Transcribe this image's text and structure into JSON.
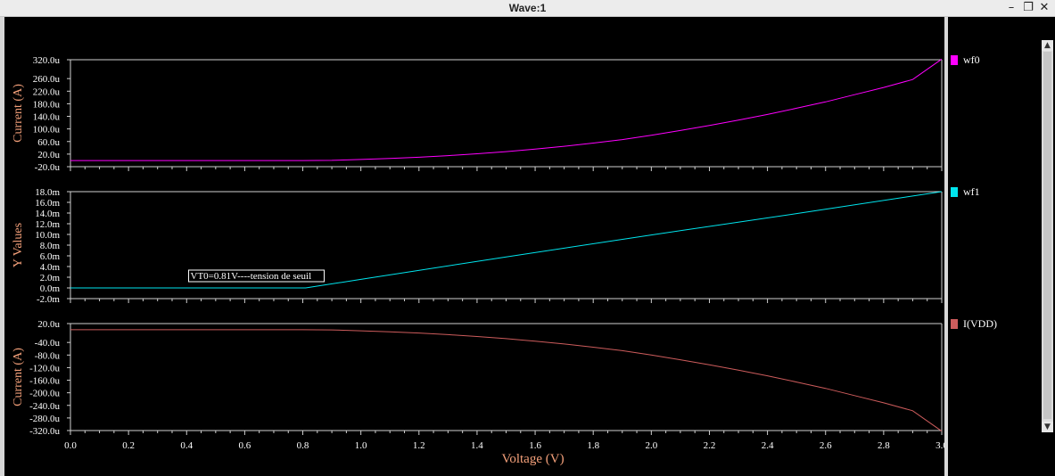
{
  "window": {
    "title": "Wave:1",
    "minimize_icon": "minimize-icon",
    "restore_icon": "restore-icon",
    "close_icon": "close-icon"
  },
  "legend": [
    {
      "label": "wf0",
      "color": "#ff00ff"
    },
    {
      "label": "wf1",
      "color": "#00e5ee"
    },
    {
      "label": "I(VDD)",
      "color": "#cd5c5c"
    }
  ],
  "chart_data": [
    {
      "type": "line",
      "ylabel": "Current (A)",
      "xlabel": "",
      "xlim": [
        0,
        3.0
      ],
      "ylim": [
        -20,
        320
      ],
      "y_ticks": [
        "320.0u",
        "260.0u",
        "220.0u",
        "180.0u",
        "140.0u",
        "100.0u",
        "60.0u",
        "20.0u",
        "-20.0u"
      ],
      "y_tick_values": [
        320,
        260,
        220,
        180,
        140,
        100,
        60,
        20,
        -20
      ],
      "color": "#ff00ff",
      "series": [
        {
          "name": "wf0",
          "x": [
            0,
            0.2,
            0.4,
            0.6,
            0.8,
            0.9,
            1.0,
            1.1,
            1.2,
            1.3,
            1.4,
            1.5,
            1.6,
            1.7,
            1.8,
            1.9,
            2.0,
            2.1,
            2.2,
            2.3,
            2.4,
            2.5,
            2.6,
            2.7,
            2.8,
            2.9,
            3.0
          ],
          "y": [
            -0.5,
            -0.5,
            -0.5,
            -0.5,
            -0.5,
            0,
            3,
            6,
            10,
            15,
            21,
            28,
            36,
            45,
            55,
            66,
            80,
            95,
            111,
            128,
            146,
            166,
            186,
            209,
            232,
            257,
            322
          ]
        }
      ],
      "annotations": []
    },
    {
      "type": "line",
      "ylabel": "Y Values",
      "xlabel": "",
      "xlim": [
        0,
        3.0
      ],
      "ylim": [
        -2,
        18
      ],
      "y_ticks": [
        "18.0m",
        "16.0m",
        "14.0m",
        "12.0m",
        "10.0m",
        "8.0m",
        "6.0m",
        "4.0m",
        "2.0m",
        "0.0m",
        "-2.0m"
      ],
      "y_tick_values": [
        18,
        16,
        14,
        12,
        10,
        8,
        6,
        4,
        2,
        0,
        -2
      ],
      "color": "#00e5ee",
      "series": [
        {
          "name": "wf1",
          "x": [
            0,
            0.2,
            0.4,
            0.6,
            0.81,
            1.0,
            1.5,
            2.0,
            2.5,
            3.0
          ],
          "y": [
            0,
            0,
            0,
            0,
            0,
            1.6,
            5.8,
            9.9,
            13.9,
            18.0
          ]
        }
      ],
      "annotations": [
        {
          "text": "VT0=0.81V----tension de seuil",
          "x": 0.81,
          "y": 0
        }
      ]
    },
    {
      "type": "line",
      "ylabel": "Current (A)",
      "xlabel": "Voltage (V)",
      "xlim": [
        0,
        3.0
      ],
      "ylim": [
        -320,
        20
      ],
      "x_ticks": [
        "0.0",
        "0.2",
        "0.4",
        "0.6",
        "0.8",
        "1.0",
        "1.2",
        "1.4",
        "1.6",
        "1.8",
        "2.0",
        "2.2",
        "2.4",
        "2.6",
        "2.8",
        "3.0"
      ],
      "x_tick_values": [
        0,
        0.2,
        0.4,
        0.6,
        0.8,
        1.0,
        1.2,
        1.4,
        1.6,
        1.8,
        2.0,
        2.2,
        2.4,
        2.6,
        2.8,
        3.0
      ],
      "y_ticks": [
        "20.0u",
        "-40.0u",
        "-80.0u",
        "-120.0u",
        "-160.0u",
        "-200.0u",
        "-240.0u",
        "-280.0u",
        "-320.0u"
      ],
      "y_tick_values": [
        20,
        -40,
        -80,
        -120,
        -160,
        -200,
        -240,
        -280,
        -320
      ],
      "color": "#cd5c5c",
      "series": [
        {
          "name": "I(VDD)",
          "x": [
            0,
            0.2,
            0.4,
            0.6,
            0.8,
            0.9,
            1.0,
            1.1,
            1.2,
            1.3,
            1.4,
            1.5,
            1.6,
            1.7,
            1.8,
            1.9,
            2.0,
            2.1,
            2.2,
            2.3,
            2.4,
            2.5,
            2.6,
            2.7,
            2.8,
            2.9,
            3.0
          ],
          "y": [
            0.5,
            0.5,
            0.5,
            0.5,
            0.5,
            0,
            -3,
            -6,
            -10,
            -15,
            -21,
            -28,
            -36,
            -45,
            -55,
            -66,
            -80,
            -95,
            -111,
            -128,
            -146,
            -166,
            -186,
            -209,
            -232,
            -257,
            -322
          ]
        }
      ],
      "annotations": []
    }
  ]
}
